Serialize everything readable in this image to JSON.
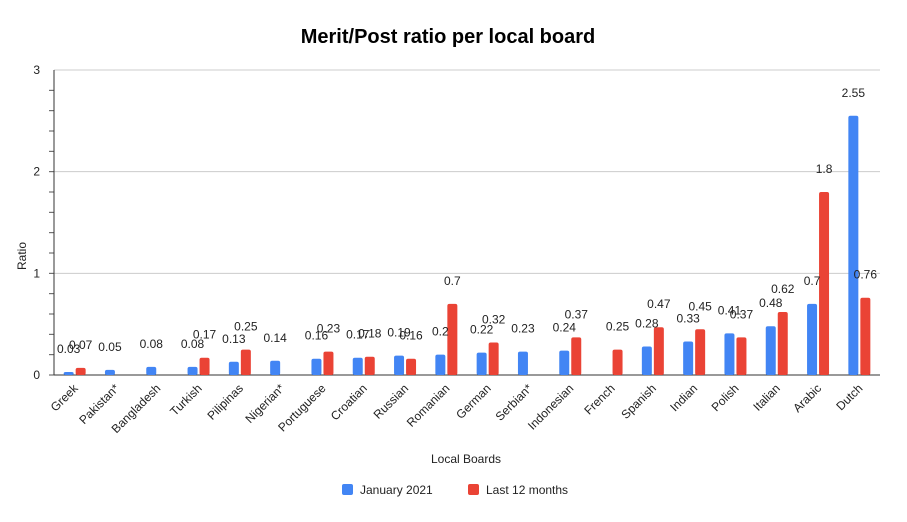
{
  "chart_data": {
    "type": "bar",
    "title": "Merit/Post ratio per local board",
    "xlabel": "Local Boards",
    "ylabel": "Ratio",
    "ylim": [
      0,
      3
    ],
    "yticks": [
      "0",
      "1",
      "2",
      "3"
    ],
    "grid": true,
    "legend_position": "bottom",
    "categories": [
      "Greek",
      "Pakistan*",
      "Bangladesh",
      "Turkish",
      "Pilipinas",
      "Nigerian*",
      "Portuguese",
      "Croatian",
      "Russian",
      "Romanian",
      "German",
      "Serbian*",
      "Indonesian",
      "French",
      "Spanish",
      "Indian",
      "Polish",
      "Italian",
      "Arabic",
      "Dutch"
    ],
    "series": [
      {
        "name": "January 2021",
        "color": "#4285f4",
        "values": [
          0.03,
          0.05,
          0.08,
          0.08,
          0.13,
          0.14,
          0.16,
          0.17,
          0.19,
          0.2,
          0.22,
          0.23,
          0.24,
          null,
          0.28,
          0.33,
          0.41,
          0.48,
          0.7,
          2.55
        ],
        "labels": [
          "0.03",
          "0.05",
          "0.08",
          "0.08",
          "0.13",
          "0.14",
          "0.16",
          "0.17",
          "0.19",
          "0.2",
          "0.22",
          "0.23",
          "0.24",
          "",
          "0.28",
          "0.33",
          "0.41",
          "0.48",
          "0.7",
          "2.55"
        ]
      },
      {
        "name": "Last 12 months",
        "color": "#ea4335",
        "values": [
          0.07,
          null,
          null,
          0.17,
          0.25,
          null,
          0.23,
          0.18,
          0.16,
          0.7,
          0.32,
          null,
          0.37,
          0.25,
          0.47,
          0.45,
          0.37,
          0.62,
          1.8,
          0.76
        ],
        "labels": [
          "0.07",
          "",
          "",
          "0.17",
          "0.25",
          "",
          "0.23",
          "0.18",
          "0.16",
          "0.7",
          "0.32",
          "",
          "0.37",
          "0.25",
          "0.47",
          "0.45",
          "0.37",
          "0.62",
          "1.8",
          "0.76"
        ]
      }
    ]
  }
}
